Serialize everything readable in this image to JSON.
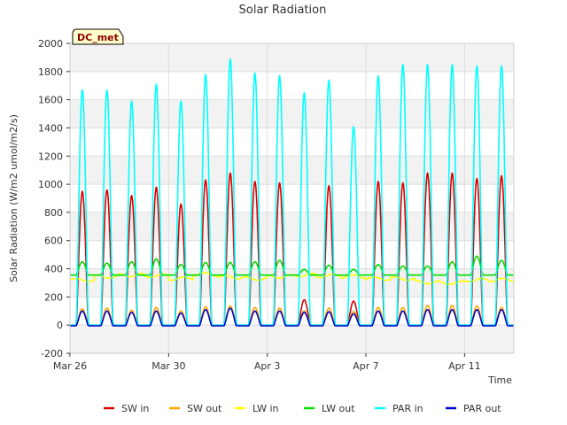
{
  "chart_data": {
    "type": "line",
    "title": "Solar Radiation",
    "xlabel": "Time",
    "ylabel": "Solar Radiation (W/m2 umol/m2/s)",
    "badge": "DC_met",
    "xlim": [
      "2024-03-26",
      "2024-04-13"
    ],
    "ylim": [
      -200,
      2000
    ],
    "yticks": [
      -200,
      0,
      200,
      400,
      600,
      800,
      1000,
      1200,
      1400,
      1600,
      1800,
      2000
    ],
    "xticks": [
      {
        "date": "2024-03-26",
        "label": "Mar 26"
      },
      {
        "date": "2024-03-30",
        "label": "Mar 30"
      },
      {
        "date": "2024-04-03",
        "label": "Apr 3"
      },
      {
        "date": "2024-04-07",
        "label": "Apr 7"
      },
      {
        "date": "2024-04-11",
        "label": "Apr 11"
      }
    ],
    "grid": true,
    "legend_position": "bottom",
    "days": [
      "2024-03-26",
      "2024-03-27",
      "2024-03-28",
      "2024-03-29",
      "2024-03-30",
      "2024-03-31",
      "2024-04-01",
      "2024-04-02",
      "2024-04-03",
      "2024-04-04",
      "2024-04-05",
      "2024-04-06",
      "2024-04-07",
      "2024-04-08",
      "2024-04-09",
      "2024-04-10",
      "2024-04-11",
      "2024-04-12"
    ],
    "series": [
      {
        "name": "SW in",
        "color": "#dd0000",
        "kind": "diurnal",
        "night": 0,
        "daily_peak": [
          950,
          960,
          920,
          980,
          860,
          1030,
          1080,
          1020,
          1010,
          180,
          990,
          170,
          1020,
          1010,
          1080,
          1080,
          1040,
          1060
        ]
      },
      {
        "name": "SW out",
        "color": "#ffa500",
        "kind": "diurnal",
        "night": 0,
        "daily_peak": [
          115,
          120,
          105,
          125,
          100,
          130,
          135,
          125,
          120,
          100,
          120,
          95,
          125,
          125,
          140,
          140,
          135,
          125
        ]
      },
      {
        "name": "LW in",
        "color": "#ffff00",
        "kind": "baseline",
        "daily_level": [
          320,
          345,
          355,
          350,
          330,
          360,
          340,
          330,
          345,
          355,
          350,
          345,
          330,
          330,
          305,
          300,
          320,
          320
        ]
      },
      {
        "name": "LW out",
        "color": "#00dd00",
        "kind": "diurnal",
        "night": 355,
        "daily_peak": [
          450,
          440,
          450,
          470,
          430,
          445,
          445,
          450,
          460,
          395,
          425,
          395,
          430,
          420,
          420,
          450,
          490,
          460
        ]
      },
      {
        "name": "PAR in",
        "color": "#00ffff",
        "kind": "diurnal",
        "night": 0,
        "daily_peak": [
          1670,
          1670,
          1590,
          1710,
          1590,
          1780,
          1890,
          1790,
          1770,
          1650,
          1740,
          1410,
          1770,
          1850,
          1850,
          1850,
          1840,
          1840
        ]
      },
      {
        "name": "PAR out",
        "color": "#0000cc",
        "kind": "diurnal",
        "night": -5,
        "daily_peak": [
          100,
          100,
          90,
          100,
          85,
          110,
          120,
          100,
          100,
          90,
          95,
          80,
          100,
          100,
          110,
          110,
          110,
          110
        ]
      }
    ]
  }
}
